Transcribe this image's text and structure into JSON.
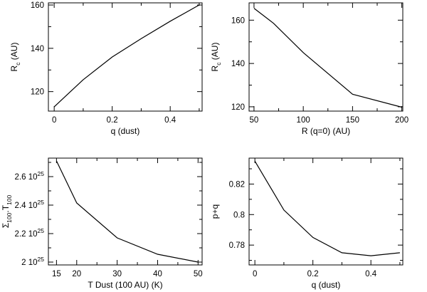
{
  "chart_data": [
    {
      "type": "line",
      "xlabel": "q (dust)",
      "ylabel_main": "R",
      "ylabel_sub": "c",
      "ylabel_tail": " (AU)",
      "xlim": [
        -0.02,
        0.51
      ],
      "ylim": [
        111,
        161
      ],
      "xticks": [
        0,
        0.2,
        0.4
      ],
      "xtick_labels": [
        "0",
        "0.2",
        "0.4"
      ],
      "xminor": 0.1,
      "yticks": [
        120,
        140,
        160
      ],
      "ytick_labels": [
        "120",
        "140",
        "160"
      ],
      "yminor": 10,
      "x": [
        0,
        0.1,
        0.2,
        0.3,
        0.4,
        0.5
      ],
      "y": [
        113,
        125.5,
        136,
        144.5,
        152.5,
        160
      ]
    },
    {
      "type": "line",
      "xlabel": "R (q=0) (AU)",
      "ylabel_main": "R",
      "ylabel_sub": "c",
      "ylabel_tail": " (AU)",
      "xlim": [
        45,
        201
      ],
      "ylim": [
        118,
        168
      ],
      "xticks": [
        50,
        100,
        150,
        200
      ],
      "xtick_labels": [
        "50",
        "100",
        "150",
        "200"
      ],
      "xminor": 25,
      "yticks": [
        120,
        140,
        160
      ],
      "ytick_labels": [
        "120",
        "140",
        "160"
      ],
      "yminor": 10,
      "x": [
        50,
        70,
        100,
        150,
        200
      ],
      "y": [
        165.5,
        158.5,
        145,
        125.8,
        119.8
      ]
    },
    {
      "type": "line",
      "xlabel": "T Dust (100 AU) (K)",
      "ylabel_main": "Σ",
      "ylabel_sub": "100",
      "ylabel_mid": ".T",
      "ylabel_sub2": "100",
      "xlim": [
        13,
        51
      ],
      "ylim": [
        1.98,
        2.73
      ],
      "xticks": [
        15,
        20,
        30,
        40,
        50
      ],
      "xtick_labels": [
        "15",
        "20",
        "30",
        "40",
        "50"
      ],
      "xminor": 5,
      "yticks": [
        2.0,
        2.2,
        2.4,
        2.6
      ],
      "ytick_labels": [
        "2 10",
        "2.2 10",
        "2.4 10",
        "2.6 10"
      ],
      "ytick_exp": "25",
      "yminor": 0.1,
      "x": [
        15,
        20,
        30,
        40,
        50
      ],
      "y": [
        2.71,
        2.415,
        2.17,
        2.055,
        2.0
      ]
    },
    {
      "type": "line",
      "xlabel": "q (dust)",
      "ylabel_main": "p+q",
      "xlim": [
        -0.02,
        0.51
      ],
      "ylim": [
        0.767,
        0.837
      ],
      "xticks": [
        0,
        0.2,
        0.4
      ],
      "xtick_labels": [
        "0",
        "0.2",
        "0.4"
      ],
      "xminor": 0.1,
      "yticks": [
        0.78,
        0.8,
        0.82
      ],
      "ytick_labels": [
        "0.78",
        "0.8",
        "0.82"
      ],
      "yminor": 0.01,
      "x": [
        0,
        0.1,
        0.2,
        0.3,
        0.4,
        0.5
      ],
      "y": [
        0.835,
        0.803,
        0.785,
        0.775,
        0.773,
        0.775
      ]
    }
  ]
}
